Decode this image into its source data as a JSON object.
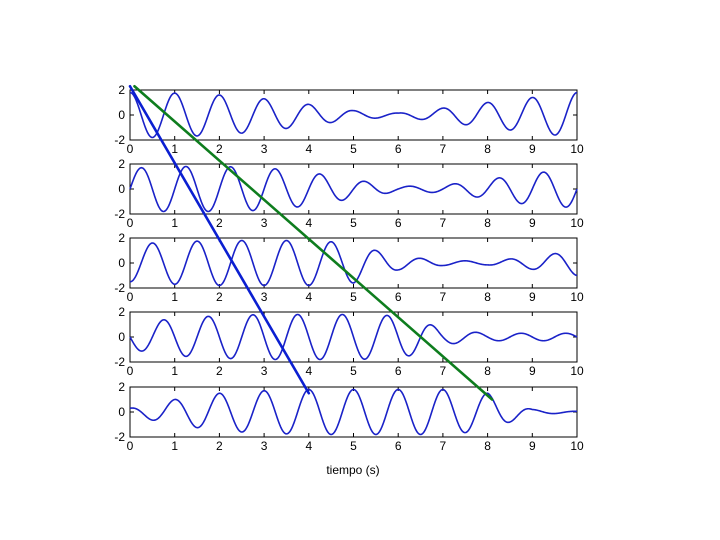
{
  "chart_data": {
    "type": "line",
    "xlabel": "tiempo (s)",
    "xlim": [
      0,
      10
    ],
    "ylim": [
      -2,
      2
    ],
    "xticks": [
      0,
      1,
      2,
      3,
      4,
      5,
      6,
      7,
      8,
      9,
      10
    ],
    "yticks": [
      -2,
      0,
      2
    ],
    "grid": false,
    "frequency_hz": 1.0,
    "panels": [
      {
        "name": "panel-1",
        "phase_shift_s": 0.0,
        "envelope_t": [
          0,
          0.5,
          1,
          2,
          3,
          4,
          5,
          6,
          7,
          8,
          9,
          10
        ],
        "envelope_amp": [
          1.8,
          1.8,
          1.75,
          1.6,
          1.3,
          0.85,
          0.35,
          0.15,
          0.55,
          1.0,
          1.4,
          1.8
        ]
      },
      {
        "name": "panel-2",
        "phase_shift_s": 0.25,
        "envelope_t": [
          0,
          0.5,
          1,
          2,
          3,
          4,
          5,
          6,
          7,
          8,
          9,
          10
        ],
        "envelope_amp": [
          1.6,
          1.8,
          1.8,
          1.8,
          1.7,
          1.35,
          0.75,
          0.2,
          0.3,
          0.75,
          1.3,
          1.5
        ]
      },
      {
        "name": "panel-3",
        "phase_shift_s": 0.5,
        "envelope_t": [
          0,
          1,
          2,
          3,
          4,
          5,
          5.5,
          6,
          7,
          8,
          9,
          10
        ],
        "envelope_amp": [
          1.5,
          1.7,
          1.8,
          1.8,
          1.8,
          1.6,
          1.0,
          0.55,
          0.2,
          0.15,
          0.5,
          1.0
        ]
      },
      {
        "name": "panel-4",
        "phase_shift_s": 0.75,
        "envelope_t": [
          0,
          1,
          2,
          3,
          4,
          5,
          6,
          6.5,
          7,
          8,
          9,
          10
        ],
        "envelope_amp": [
          1.0,
          1.5,
          1.7,
          1.8,
          1.8,
          1.8,
          1.7,
          1.3,
          0.6,
          0.3,
          0.3,
          0.3
        ]
      },
      {
        "name": "panel-5",
        "phase_shift_s": 1.0,
        "envelope_t": [
          0,
          1,
          2,
          3,
          4,
          5,
          6,
          7,
          8,
          8.5,
          9,
          10
        ],
        "envelope_amp": [
          0.3,
          1.0,
          1.5,
          1.7,
          1.8,
          1.8,
          1.8,
          1.8,
          1.5,
          0.8,
          0.2,
          0.05
        ]
      }
    ],
    "overlay_lines": [
      {
        "color": "#0b1fd1",
        "from": {
          "panel": 1,
          "x": 0.0,
          "y": 2.3
        },
        "to": {
          "panel": 5,
          "x": 4.0,
          "y": 1.5
        }
      },
      {
        "color": "#0e7d1e",
        "from": {
          "panel": 1,
          "x": 0.1,
          "y": 2.3
        },
        "to": {
          "panel": 5,
          "x": 8.1,
          "y": 1.0
        }
      }
    ],
    "colors": {
      "series": "#1a22c8",
      "axes": "#000000"
    }
  }
}
